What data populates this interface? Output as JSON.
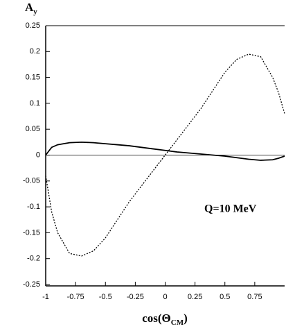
{
  "chart_data": {
    "type": "line",
    "y_label": "A",
    "y_label_sub": "y",
    "x_label_parts": [
      "cos(Θ",
      "CM",
      ")"
    ],
    "annotation": "Q=10 MeV",
    "x": [
      -1,
      -0.95,
      -0.9,
      -0.8,
      -0.7,
      -0.6,
      -0.5,
      -0.4,
      -0.3,
      -0.2,
      -0.1,
      0,
      0.1,
      0.2,
      0.3,
      0.4,
      0.5,
      0.6,
      0.7,
      0.8,
      0.9,
      0.95,
      1
    ],
    "series": [
      {
        "color": "#000000",
        "style": "solid",
        "values": [
          0.0,
          0.015,
          0.02,
          0.024,
          0.025,
          0.024,
          0.022,
          0.02,
          0.018,
          0.015,
          0.012,
          0.009,
          0.006,
          0.004,
          0.002,
          0.0,
          -0.002,
          -0.005,
          -0.008,
          -0.01,
          -0.009,
          -0.006,
          -0.002
        ]
      },
      {
        "color": "#000000",
        "style": "dotted",
        "values": [
          -0.04,
          -0.11,
          -0.15,
          -0.19,
          -0.195,
          -0.185,
          -0.16,
          -0.125,
          -0.09,
          -0.06,
          -0.03,
          0.0,
          0.03,
          0.06,
          0.09,
          0.125,
          0.16,
          0.185,
          0.195,
          0.19,
          0.15,
          0.12,
          0.08
        ]
      }
    ],
    "xlim": [
      -1,
      1
    ],
    "xticks": [
      -1,
      -0.75,
      -0.5,
      -0.25,
      0,
      0.25,
      0.5,
      0.75
    ],
    "ylim": [
      -0.25,
      0.25
    ],
    "yticks": [
      -0.25,
      -0.2,
      -0.15,
      -0.1,
      -0.05,
      0,
      0.05,
      0.1,
      0.15,
      0.2,
      0.25
    ],
    "zero_line": true
  }
}
